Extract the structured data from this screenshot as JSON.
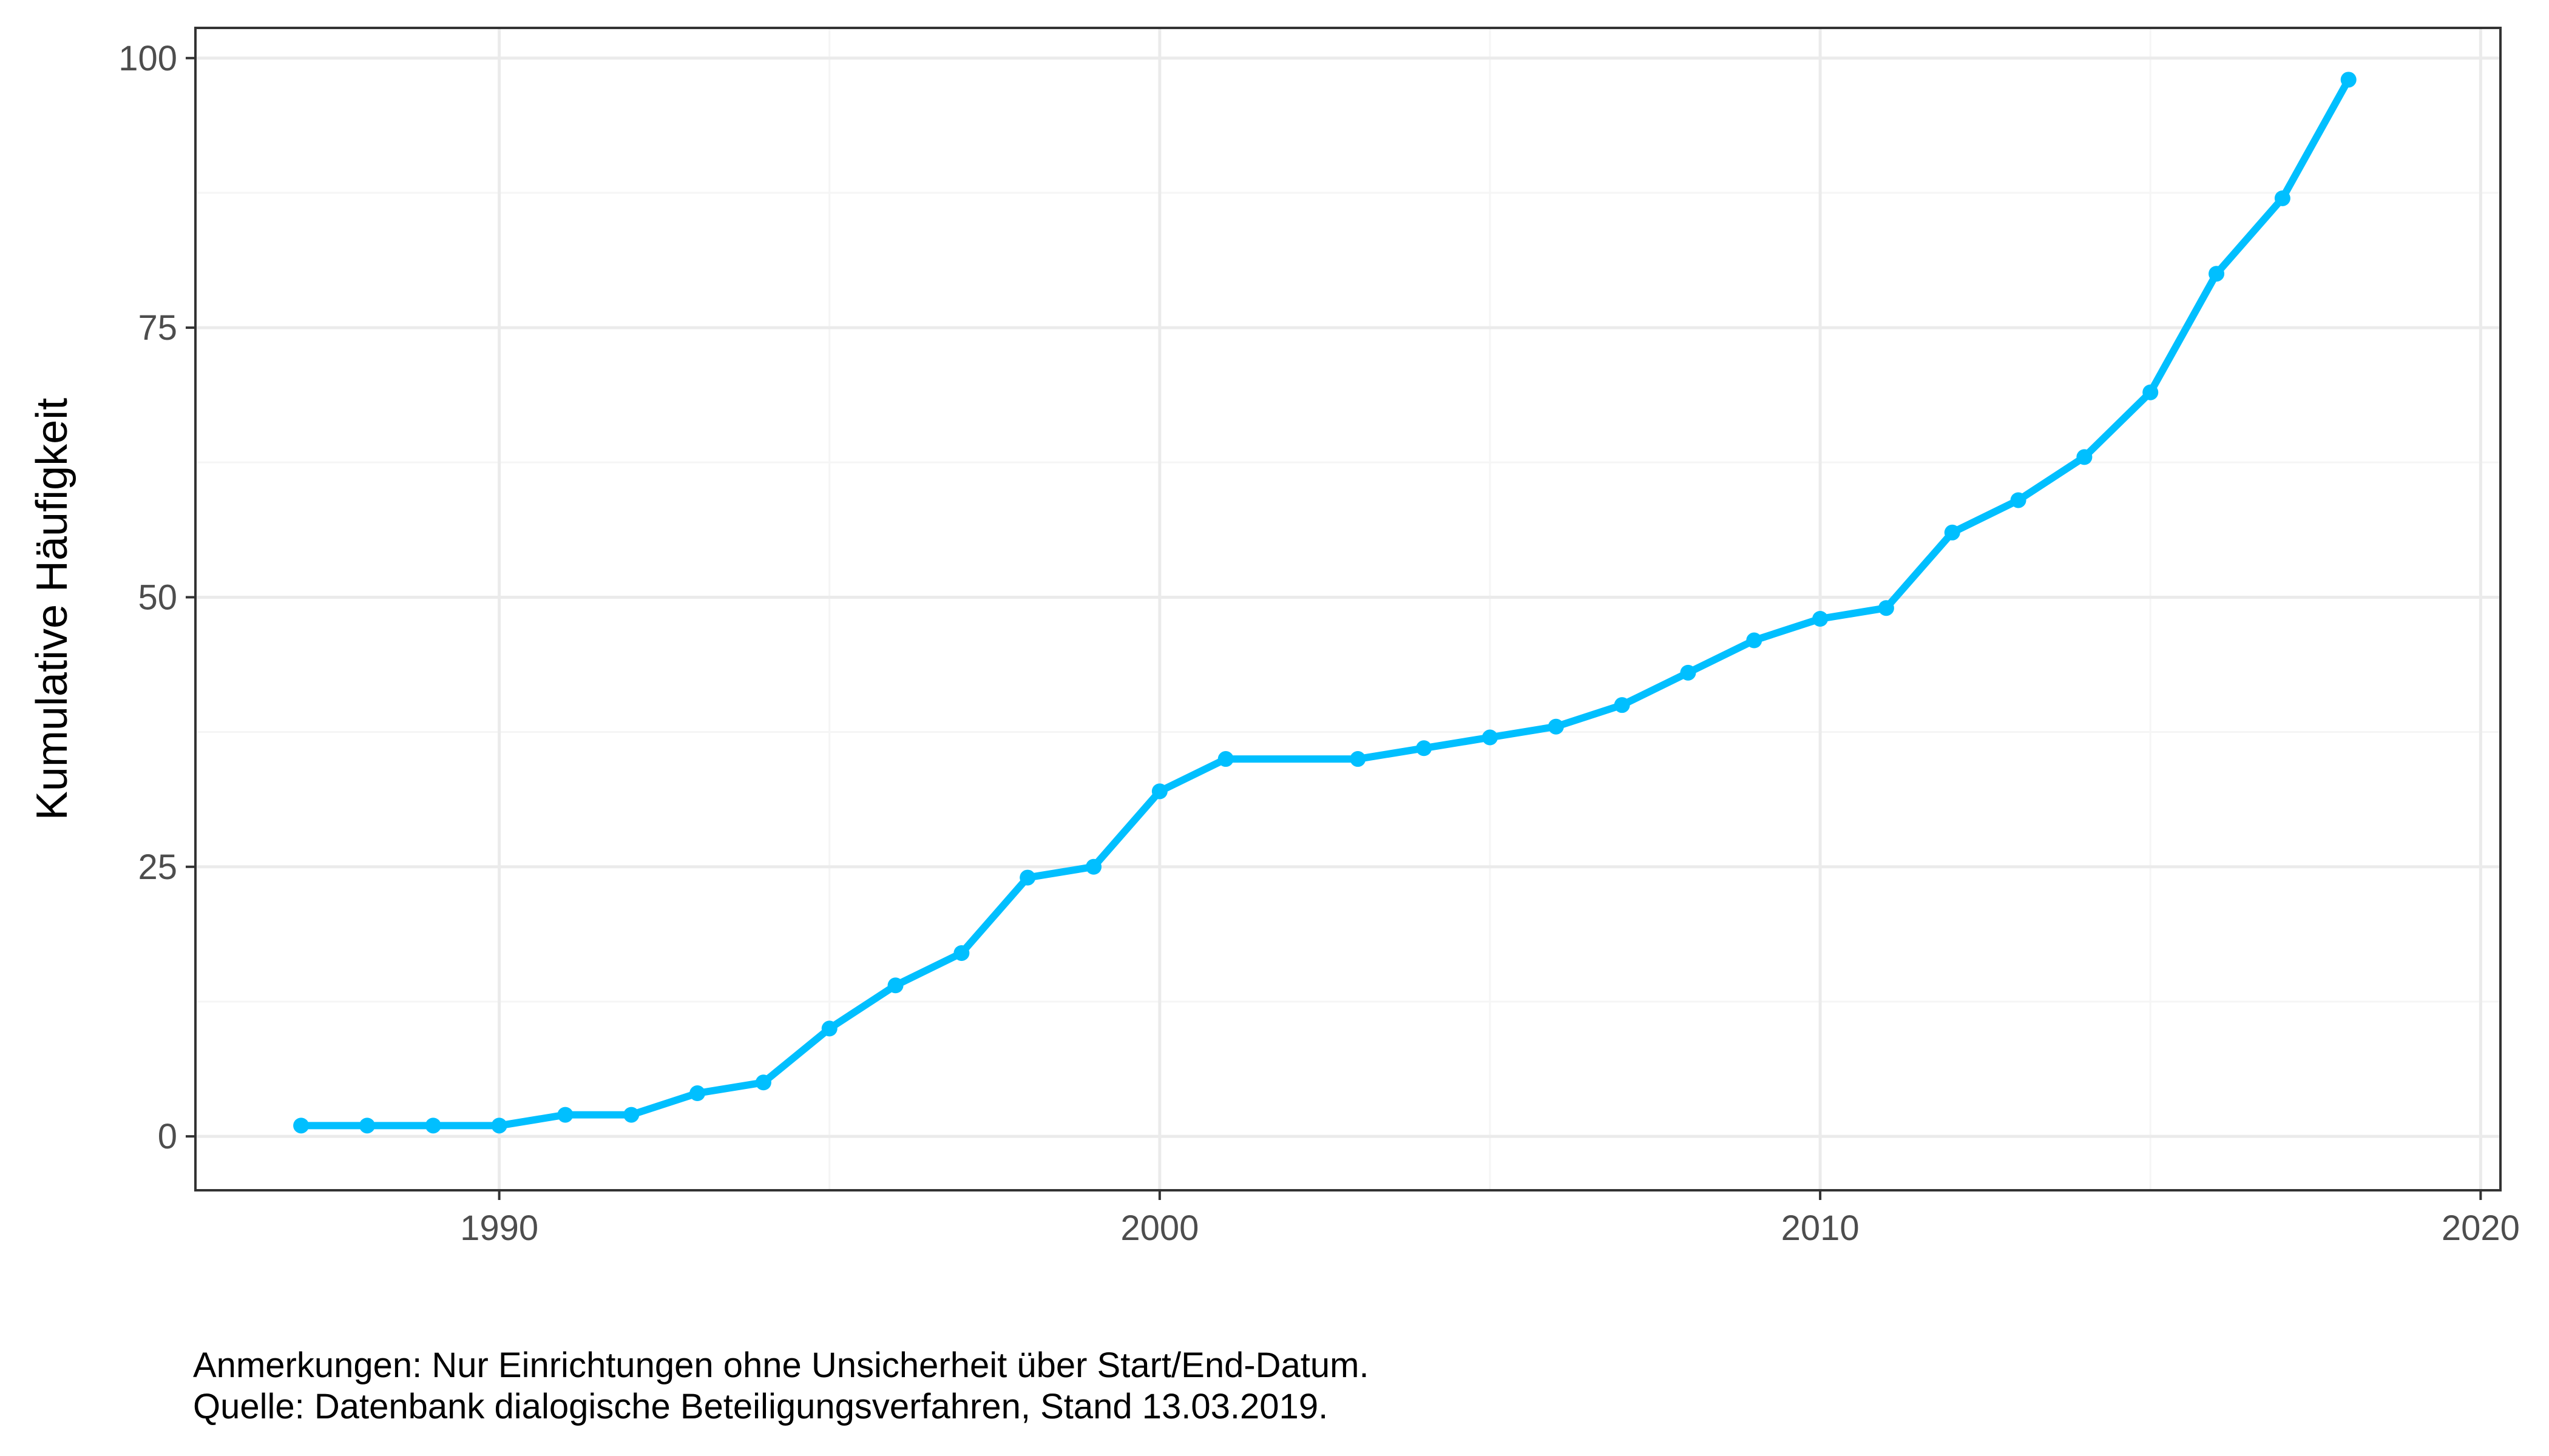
{
  "chart_data": {
    "type": "line",
    "title": "",
    "xlabel": "",
    "ylabel": "Kumulative Häufigkeit",
    "xlim": [
      1985.4,
      2020.3
    ],
    "ylim": [
      -5,
      102.8
    ],
    "x_ticks": [
      1990,
      2000,
      2010,
      2020
    ],
    "y_ticks": [
      0,
      25,
      50,
      75,
      100
    ],
    "grid": true,
    "legend": "none",
    "series": [
      {
        "color": "#00BFFF",
        "x": [
          1987,
          1988,
          1989,
          1990,
          1991,
          1992,
          1993,
          1994,
          1995,
          1996,
          1997,
          1998,
          1999,
          2000,
          2001,
          2003,
          2004,
          2005,
          2006,
          2007,
          2008,
          2009,
          2010,
          2011,
          2012,
          2013,
          2014,
          2015,
          2016,
          2017,
          2018
        ],
        "y": [
          1,
          1,
          1,
          1,
          2,
          2,
          4,
          5,
          10,
          14,
          17,
          24,
          25,
          32,
          35,
          35,
          36,
          37,
          38,
          40,
          43,
          46,
          48,
          49,
          56,
          59,
          63,
          69,
          80,
          87,
          98
        ]
      }
    ]
  },
  "notes": {
    "line1": "Anmerkungen: Nur Einrichtungen ohne Unsicherheit über Start/End-Datum.",
    "line2": "Quelle: Datenbank dialogische Beteiligungsverfahren, Stand 13.03.2019."
  },
  "colors": {
    "line": "#00BFFF",
    "grid_major": "#EBEBEB",
    "grid_minor": "#F5F5F5",
    "panel_border": "#333333",
    "tick_text": "#4D4D4D"
  }
}
